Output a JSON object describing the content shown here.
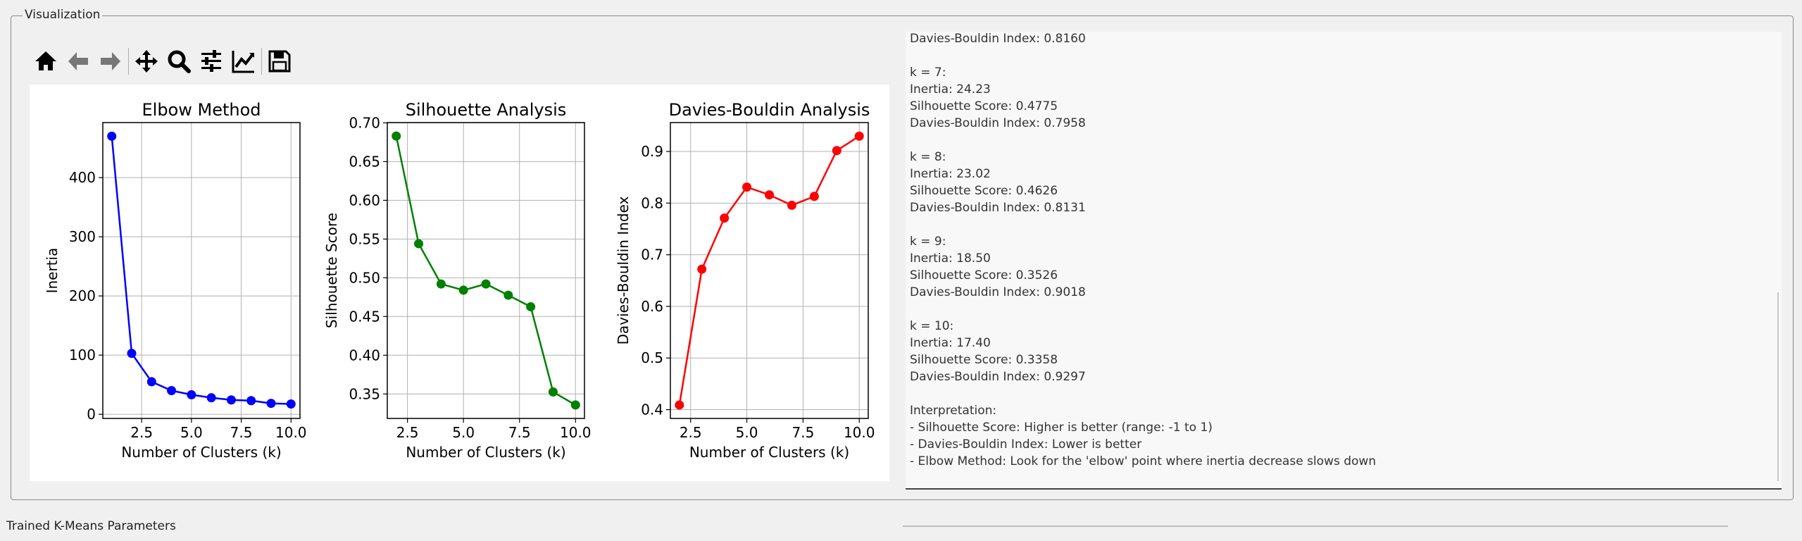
{
  "group_title": "Visualization",
  "toolbar": {
    "buttons": [
      {
        "icon": "home-icon"
      },
      {
        "icon": "back-arrow-icon"
      },
      {
        "icon": "forward-arrow-icon"
      },
      {
        "icon": "pan-icon"
      },
      {
        "icon": "zoom-icon"
      },
      {
        "icon": "subplots-config-icon"
      },
      {
        "icon": "axes-edit-icon"
      },
      {
        "icon": "save-icon"
      }
    ]
  },
  "chart_data": [
    {
      "type": "line",
      "title": "Elbow Method",
      "xlabel": "Number of Clusters (k)",
      "ylabel": "Inertia",
      "x": [
        1,
        2,
        3,
        4,
        5,
        6,
        7,
        8,
        9,
        10
      ],
      "y": [
        470,
        103,
        55,
        40,
        33,
        28,
        24.23,
        23.02,
        18.5,
        17.4
      ],
      "xticks": [
        "2.5",
        "5.0",
        "7.5",
        "10.0"
      ],
      "yticks": [
        "0",
        "100",
        "200",
        "300",
        "400"
      ],
      "xlim": [
        0.55,
        10.45
      ],
      "ylim": [
        -7,
        493
      ],
      "color": "#0000ff",
      "grid": true
    },
    {
      "type": "line",
      "title": "Silhouette Analysis",
      "xlabel": "Number of Clusters (k)",
      "ylabel": "Silhouette Score",
      "x": [
        2,
        3,
        4,
        5,
        6,
        7,
        8,
        9,
        10
      ],
      "y": [
        0.683,
        0.544,
        0.492,
        0.484,
        0.492,
        0.4775,
        0.4626,
        0.3526,
        0.3358
      ],
      "xticks": [
        "2.5",
        "5.0",
        "7.5",
        "10.0"
      ],
      "yticks": [
        "0.35",
        "0.40",
        "0.45",
        "0.50",
        "0.55",
        "0.60",
        "0.65",
        "0.70"
      ],
      "xlim": [
        1.6,
        10.4
      ],
      "ylim": [
        0.3184,
        0.7004
      ],
      "color": "#008000",
      "grid": true
    },
    {
      "type": "line",
      "title": "Davies-Bouldin Analysis",
      "xlabel": "Number of Clusters (k)",
      "ylabel": "Davies-Bouldin Index",
      "x": [
        2,
        3,
        4,
        5,
        6,
        7,
        8,
        9,
        10
      ],
      "y": [
        0.409,
        0.672,
        0.771,
        0.831,
        0.816,
        0.7958,
        0.8131,
        0.9018,
        0.9297
      ],
      "xticks": [
        "2.5",
        "5.0",
        "7.5",
        "10.0"
      ],
      "yticks": [
        "0.4",
        "0.5",
        "0.6",
        "0.7",
        "0.8",
        "0.9"
      ],
      "xlim": [
        1.6,
        10.4
      ],
      "ylim": [
        0.383,
        0.956
      ],
      "color": "#ff0000",
      "grid": true
    }
  ],
  "results_text": [
    "Davies-Bouldin Index: 0.8160",
    "",
    "k = 7:",
    "Inertia: 24.23",
    "Silhouette Score: 0.4775",
    "Davies-Bouldin Index: 0.7958",
    "",
    "k = 8:",
    "Inertia: 23.02",
    "Silhouette Score: 0.4626",
    "Davies-Bouldin Index: 0.8131",
    "",
    "k = 9:",
    "Inertia: 18.50",
    "Silhouette Score: 0.3526",
    "Davies-Bouldin Index: 0.9018",
    "",
    "k = 10:",
    "Inertia: 17.40",
    "Silhouette Score: 0.3358",
    "Davies-Bouldin Index: 0.9297",
    "",
    "Interpretation:",
    "- Silhouette Score: Higher is better (range: -1 to 1)",
    "- Davies-Bouldin Index: Lower is better",
    "- Elbow Method: Look for the 'elbow' point where inertia decrease slows down"
  ],
  "bottom_section_title": "Trained K-Means Parameters"
}
